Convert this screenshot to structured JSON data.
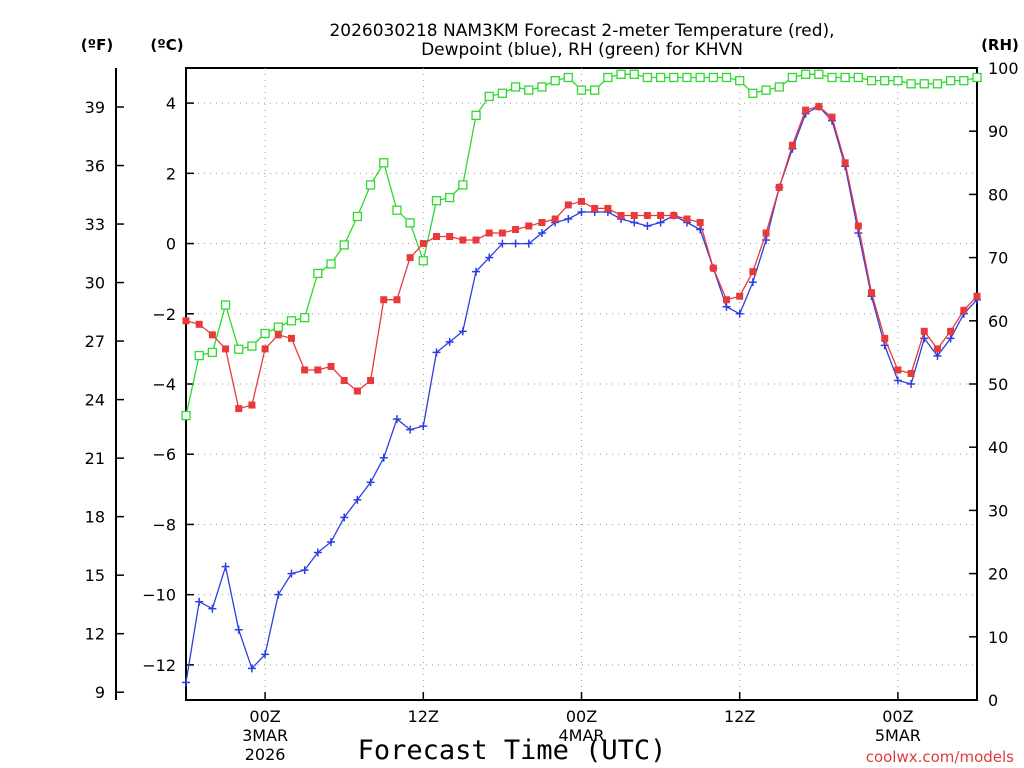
{
  "chart_data": {
    "type": "line",
    "title": "2026030218 NAM3KM Forecast 2-meter Temperature (red),",
    "title2": "Dewpoint (blue), RH (green) for KHVN",
    "xlabel": "Forecast Time (UTC)",
    "watermark": "coolwx.com/models",
    "unit_f": "(ºF)",
    "unit_c": "(ºC)",
    "unit_rh": "(RH)",
    "forecast_hours": [
      0,
      1,
      2,
      3,
      4,
      5,
      6,
      7,
      8,
      9,
      10,
      11,
      12,
      13,
      14,
      15,
      16,
      17,
      18,
      19,
      20,
      21,
      22,
      23,
      24,
      25,
      26,
      27,
      28,
      29,
      30,
      31,
      32,
      33,
      34,
      35,
      36,
      37,
      38,
      39,
      40,
      41,
      42,
      43,
      44,
      45,
      46,
      47,
      48,
      49,
      50,
      51,
      52,
      53,
      54,
      55,
      56,
      57,
      58,
      59,
      60
    ],
    "x_ticks": [
      {
        "hour": 6,
        "label": "00Z",
        "sub1": "3MAR",
        "sub2": "2026"
      },
      {
        "hour": 18,
        "label": "12Z",
        "sub1": "",
        "sub2": ""
      },
      {
        "hour": 30,
        "label": "00Z",
        "sub1": "4MAR",
        "sub2": ""
      },
      {
        "hour": 42,
        "label": "12Z",
        "sub1": "",
        "sub2": ""
      },
      {
        "hour": 54,
        "label": "00Z",
        "sub1": "5MAR",
        "sub2": ""
      }
    ],
    "celsius_axis": {
      "range": [
        -13.0,
        5.0
      ],
      "ticks": [
        -12,
        -10,
        -8,
        -6,
        -4,
        -2,
        0,
        2,
        4
      ]
    },
    "fahrenheit_axis": {
      "ticks": [
        9,
        12,
        15,
        18,
        21,
        24,
        27,
        30,
        33,
        36,
        39
      ]
    },
    "rh_axis": {
      "range": [
        0,
        100
      ],
      "ticks": [
        0,
        10,
        20,
        30,
        40,
        50,
        60,
        70,
        80,
        90,
        100
      ]
    },
    "series": [
      {
        "name": "Temperature",
        "color": "#e83a3a",
        "marker": "filled-square",
        "axis": "celsius",
        "values": [
          -2.2,
          -2.3,
          -2.6,
          -3.0,
          -4.7,
          -4.6,
          -3.0,
          -2.6,
          -2.7,
          -3.6,
          -3.6,
          -3.5,
          -3.9,
          -4.2,
          -3.9,
          -1.6,
          -1.6,
          -0.4,
          0.0,
          0.2,
          0.2,
          0.1,
          0.1,
          0.3,
          0.3,
          0.4,
          0.5,
          0.6,
          0.7,
          1.1,
          1.2,
          1.0,
          1.0,
          0.8,
          0.8,
          0.8,
          0.8,
          0.8,
          0.7,
          0.6,
          -0.7,
          -1.6,
          -1.5,
          -0.8,
          0.3,
          1.6,
          2.8,
          3.8,
          3.9,
          3.6,
          2.3,
          0.5,
          -1.4,
          -2.7,
          -3.6,
          -3.7,
          -2.5,
          -3.0,
          -2.5,
          -1.9,
          -1.5
        ]
      },
      {
        "name": "Dewpoint",
        "color": "#2c3fe0",
        "marker": "plus",
        "axis": "celsius",
        "values": [
          -12.5,
          -10.2,
          -10.4,
          -9.2,
          -11.0,
          -12.1,
          -11.7,
          -10.0,
          -9.4,
          -9.3,
          -8.8,
          -8.5,
          -7.8,
          -7.3,
          -6.8,
          -6.1,
          -5.0,
          -5.3,
          -5.2,
          -3.1,
          -2.8,
          -2.5,
          -0.8,
          -0.4,
          0.0,
          0.0,
          0.0,
          0.3,
          0.6,
          0.7,
          0.9,
          0.9,
          0.9,
          0.7,
          0.6,
          0.5,
          0.6,
          0.8,
          0.6,
          0.4,
          -0.7,
          -1.8,
          -2.0,
          -1.1,
          0.1,
          1.6,
          2.7,
          3.7,
          3.9,
          3.5,
          2.2,
          0.3,
          -1.5,
          -2.9,
          -3.9,
          -4.0,
          -2.7,
          -3.2,
          -2.7,
          -2.0,
          -1.6
        ]
      },
      {
        "name": "RH",
        "color": "#2fd92f",
        "marker": "open-square",
        "axis": "rh",
        "values": [
          45,
          54.5,
          55,
          62.5,
          55.5,
          56,
          58,
          59,
          60,
          60.5,
          67.5,
          69,
          72,
          76.5,
          81.5,
          85,
          77.5,
          75.5,
          69.5,
          79,
          79.5,
          81.5,
          92.5,
          95.5,
          96,
          97,
          96.5,
          97,
          98,
          98.5,
          96.5,
          96.5,
          98.5,
          99,
          99,
          98.5,
          98.5,
          98.5,
          98.5,
          98.5,
          98.5,
          98.5,
          98,
          96,
          96.5,
          97,
          98.5,
          99,
          99,
          98.5,
          98.5,
          98.5,
          98,
          98,
          98,
          97.5,
          97.5,
          97.5,
          98,
          98,
          98.5
        ]
      }
    ]
  }
}
